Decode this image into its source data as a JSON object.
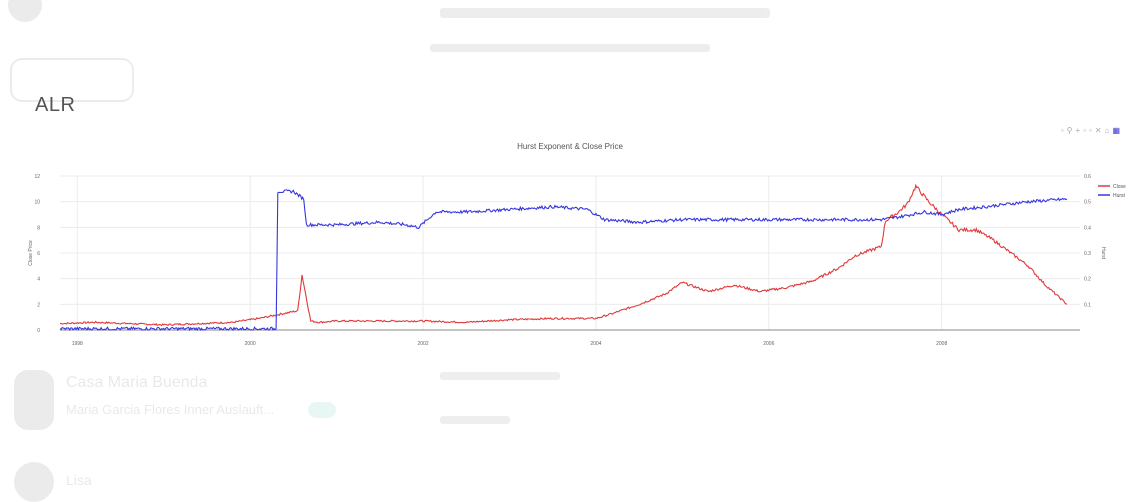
{
  "page": {
    "ticker": "ALR"
  },
  "background": {
    "contacts": [
      {
        "name": "Casa Maria Buenda",
        "subtitle": "Maria Garcia Flores Inner Auslauft...",
        "badge": ""
      },
      {
        "name": "Lisa",
        "subtitle": "",
        "badge": ""
      }
    ]
  },
  "toolbar": {
    "icons": [
      {
        "name": "camera-icon",
        "glyph": "▫"
      },
      {
        "name": "zoom-icon",
        "glyph": "⚲"
      },
      {
        "name": "pan-icon",
        "glyph": "+"
      },
      {
        "name": "zoom-in-icon",
        "glyph": "▫"
      },
      {
        "name": "zoom-out-icon",
        "glyph": "▫"
      },
      {
        "name": "autoscale-icon",
        "glyph": "✕"
      },
      {
        "name": "reset-axes-icon",
        "glyph": "⌂"
      },
      {
        "name": "plotly-logo-icon",
        "glyph": "▦"
      }
    ]
  },
  "chart_data": {
    "type": "line",
    "title": "Hurst Exponent & Close Price",
    "ylabel": "Close Price",
    "y2label": "Hurst",
    "xlim": [
      1997.8,
      2009.6
    ],
    "ylim": [
      0,
      12
    ],
    "y2lim": [
      0,
      0.6
    ],
    "xticks": [
      {
        "v": 1998,
        "label": "1998"
      },
      {
        "v": 2000,
        "label": "2000"
      },
      {
        "v": 2002,
        "label": "2002"
      },
      {
        "v": 2004,
        "label": "2004"
      },
      {
        "v": 2006,
        "label": "2006"
      },
      {
        "v": 2008,
        "label": "2008"
      }
    ],
    "yticks": [
      0,
      2,
      4,
      6,
      8,
      10,
      12
    ],
    "y2ticks": [
      {
        "v": 0.1,
        "label": "0.1"
      },
      {
        "v": 0.2,
        "label": "0.2"
      },
      {
        "v": 0.3,
        "label": "0.3"
      },
      {
        "v": 0.4,
        "label": "0.4"
      },
      {
        "v": 0.5,
        "label": "0.5"
      },
      {
        "v": 0.6,
        "label": "0.6"
      }
    ],
    "legend_position": "top-right",
    "grid": true,
    "series": [
      {
        "name": "Close",
        "color": "#e0393a",
        "axis": "y",
        "noise": 0.12,
        "x": [
          1997.8,
          1998.2,
          1998.6,
          1999.0,
          1999.4,
          1999.8,
          2000.1,
          2000.4,
          2000.55,
          2000.6,
          2000.65,
          2000.7,
          2000.8,
          2001.0,
          2001.5,
          2002.0,
          2002.5,
          2003.0,
          2003.5,
          2004.0,
          2004.2,
          2004.5,
          2004.8,
          2005.0,
          2005.3,
          2005.6,
          2005.9,
          2006.2,
          2006.5,
          2006.8,
          2007.0,
          2007.3,
          2007.35,
          2007.5,
          2007.6,
          2007.7,
          2007.85,
          2008.0,
          2008.2,
          2008.4,
          2008.6,
          2008.8,
          2009.0,
          2009.2,
          2009.45
        ],
        "y": [
          0.5,
          0.6,
          0.5,
          0.4,
          0.5,
          0.6,
          0.9,
          1.3,
          1.5,
          4.3,
          2.5,
          0.7,
          0.6,
          0.7,
          0.7,
          0.7,
          0.6,
          0.8,
          0.9,
          0.9,
          1.3,
          2.0,
          2.8,
          3.7,
          3.0,
          3.5,
          3.0,
          3.3,
          3.8,
          4.8,
          5.8,
          6.5,
          8.5,
          9.2,
          9.8,
          11.2,
          10.0,
          9.0,
          7.8,
          7.8,
          7.0,
          6.0,
          5.0,
          3.5,
          2.0
        ]
      },
      {
        "name": "Hurst",
        "color": "#3636e0",
        "axis": "y2",
        "noise": 0.012,
        "x": [
          1997.8,
          2000.3,
          2000.32,
          2000.5,
          2000.62,
          2000.65,
          2001.0,
          2001.5,
          2001.8,
          2001.95,
          2002.15,
          2002.5,
          2003.0,
          2003.5,
          2003.9,
          2004.1,
          2004.5,
          2005.0,
          2005.5,
          2006.0,
          2006.5,
          2007.0,
          2007.3,
          2007.5,
          2007.8,
          2008.0,
          2008.2,
          2008.5,
          2009.0,
          2009.45
        ],
        "y": [
          0.005,
          0.005,
          0.54,
          0.54,
          0.51,
          0.41,
          0.41,
          0.42,
          0.41,
          0.4,
          0.46,
          0.46,
          0.47,
          0.48,
          0.47,
          0.43,
          0.42,
          0.43,
          0.43,
          0.43,
          0.43,
          0.43,
          0.43,
          0.44,
          0.46,
          0.45,
          0.47,
          0.48,
          0.5,
          0.51
        ]
      }
    ]
  }
}
